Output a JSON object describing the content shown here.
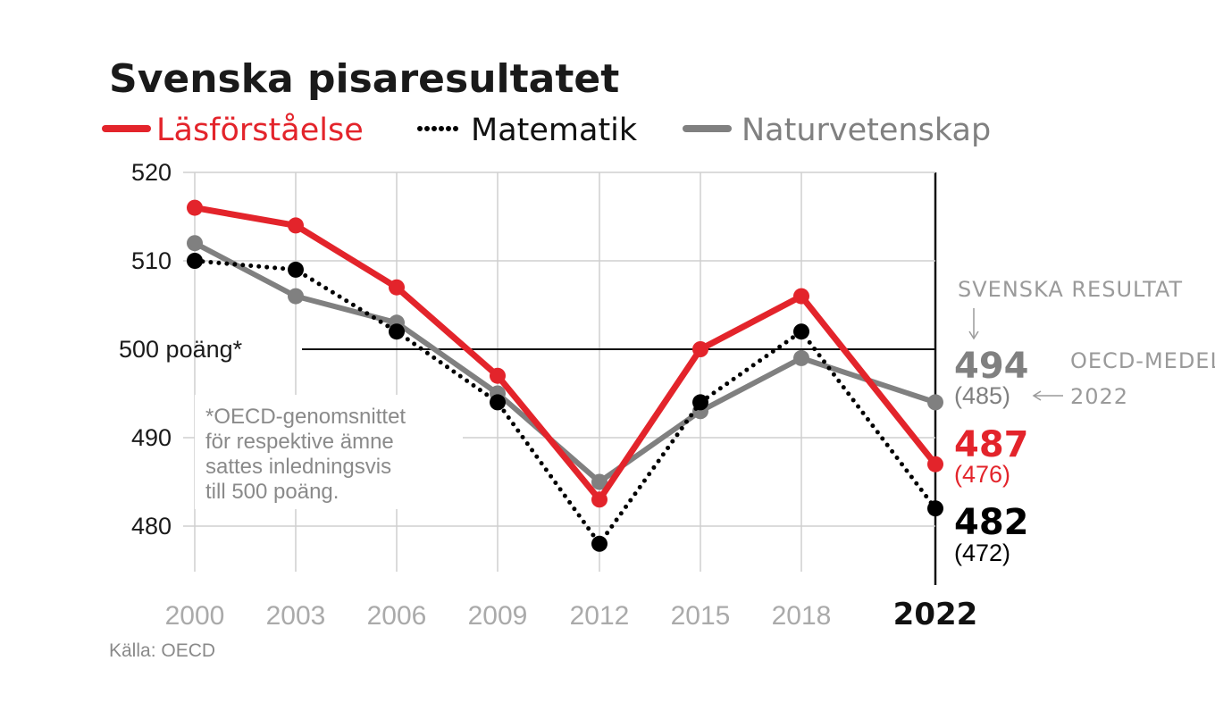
{
  "colors": {
    "reading": "#e3242b",
    "math": "#000000",
    "science": "#808080",
    "grid": "#cfcfcf"
  },
  "chart_data": {
    "type": "line",
    "title": "Svenska pisaresultatet",
    "x": [
      "2000",
      "2003",
      "2006",
      "2009",
      "2012",
      "2015",
      "2018",
      "2022"
    ],
    "series": [
      {
        "name": "Läsförståelse",
        "values": [
          516,
          514,
          507,
          497,
          483,
          500,
          506,
          487
        ],
        "color": "#e3242b",
        "style": "solid"
      },
      {
        "name": "Matematik",
        "values": [
          510,
          509,
          502,
          494,
          478,
          494,
          502,
          482
        ],
        "color": "#000000",
        "style": "dotted"
      },
      {
        "name": "Naturvetenskap",
        "values": [
          512,
          506,
          503,
          495,
          485,
          493,
          499,
          494
        ],
        "color": "#808080",
        "style": "solid"
      }
    ],
    "ylim": [
      475,
      520
    ],
    "yticks": [
      "520",
      "510",
      "500",
      "490",
      "480"
    ],
    "reference_line": {
      "value": 500,
      "label": "500 poäng*"
    },
    "note": "*OECD-genomsnittet för respektive ämne sattes inledningsvis till 500 poäng.",
    "note_lines": [
      "*OECD-genomsnittet",
      "för respektive ämne",
      "sattes inledningsvis",
      "till 500 poäng."
    ],
    "final_values": [
      {
        "series": "Naturvetenskap",
        "value": "494",
        "oecd": "(485)"
      },
      {
        "series": "Läsförståelse",
        "value": "487",
        "oecd": "(476)"
      },
      {
        "series": "Matematik",
        "value": "482",
        "oecd": "(472)"
      }
    ],
    "annotations": {
      "swedish_results": "SVENSKA RESULTAT",
      "oecd_mean_line1": "OECD-MEDEL",
      "oecd_mean_line2": "2022"
    },
    "grid": true,
    "legend_position": "top"
  },
  "source": "Källa: OECD"
}
